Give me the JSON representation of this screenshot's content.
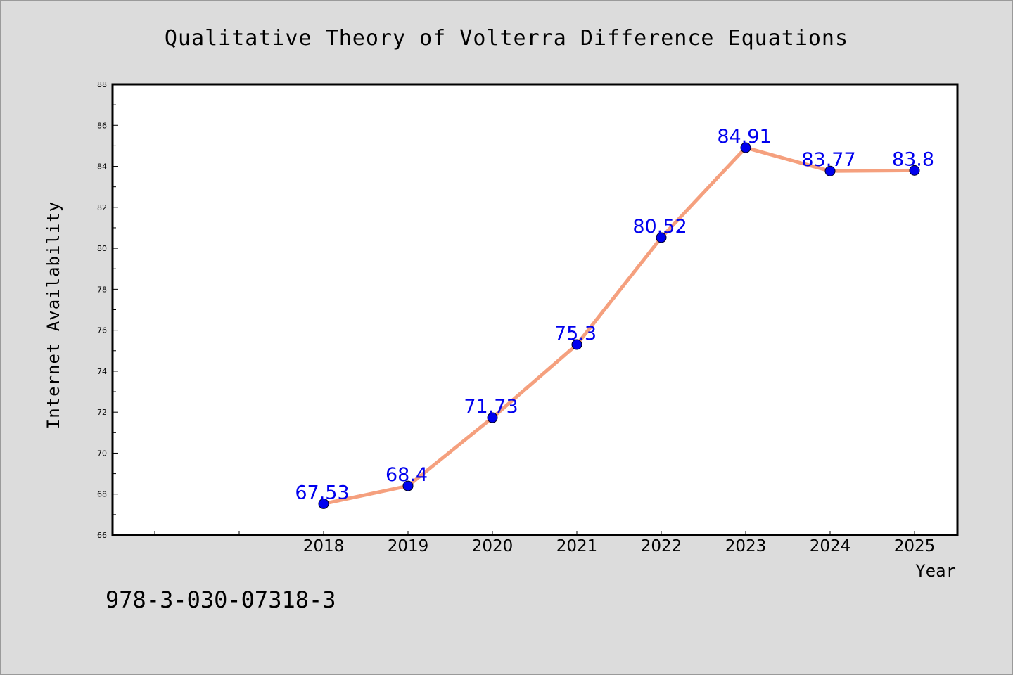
{
  "chart_data": {
    "type": "line",
    "title": "Qualitative Theory of Volterra Difference Equations",
    "xlabel": "Year",
    "ylabel": "Internet Availability",
    "x_ticks": [
      "",
      "",
      "2018",
      "2019",
      "2020",
      "2021",
      "2022",
      "2023",
      "2024",
      "2025"
    ],
    "categories": [
      "2018",
      "2019",
      "2020",
      "2021",
      "2022",
      "2023",
      "2024",
      "2025"
    ],
    "values": [
      67.53,
      68.4,
      71.73,
      75.3,
      80.52,
      84.91,
      83.77,
      83.8
    ],
    "data_labels": [
      "67.53",
      "68.4",
      "71.73",
      "75.3",
      "80.52",
      "84.91",
      "83.77",
      "83.8"
    ],
    "y_ticks": [
      "66",
      "68",
      "70",
      "72",
      "74",
      "76",
      "78",
      "80",
      "82",
      "84",
      "86",
      "88"
    ],
    "ylim": [
      66,
      88
    ],
    "grid": false,
    "colors": {
      "line": "#f5a07e",
      "marker": "#0000ee",
      "data_label": "#0000ee",
      "plot_background": "#ffffff",
      "figure_background": "#dcdcdc"
    }
  },
  "footer": {
    "isbn": "978-3-030-07318-3"
  }
}
